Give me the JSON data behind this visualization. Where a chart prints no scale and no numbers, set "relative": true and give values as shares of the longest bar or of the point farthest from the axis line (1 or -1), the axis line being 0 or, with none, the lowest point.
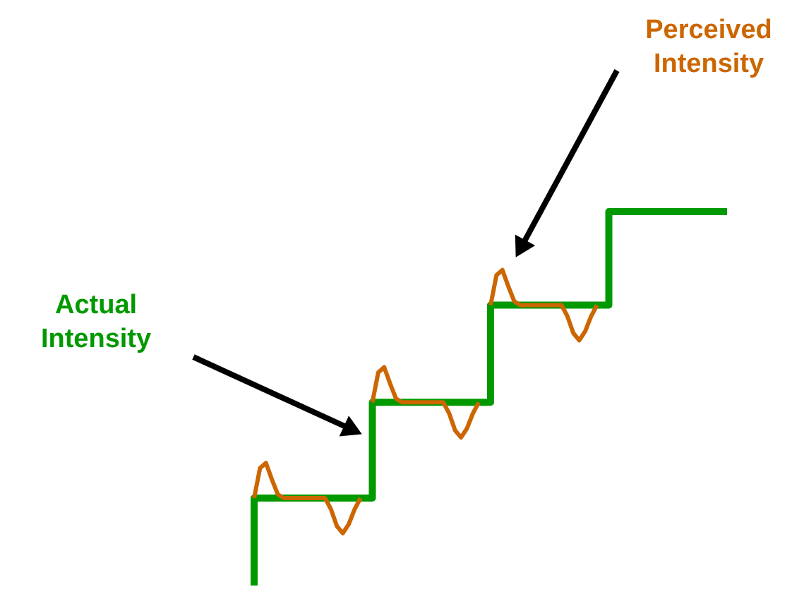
{
  "chart_data": {
    "type": "line",
    "relative": true,
    "line_style": "solid",
    "categories": [
      null,
      null,
      null,
      null,
      null,
      null,
      null,
      null,
      null,
      null,
      null,
      null,
      null,
      null,
      null,
      null,
      null,
      null,
      null,
      null,
      null,
      null,
      null,
      null,
      null,
      null,
      null,
      null,
      null,
      null,
      null,
      null,
      null,
      null,
      null,
      null,
      null,
      null,
      null,
      null,
      null,
      null,
      null,
      null,
      null,
      null,
      null,
      null,
      null,
      null,
      null,
      null,
      null,
      null,
      null,
      null,
      null,
      null,
      null,
      null,
      null,
      null,
      null,
      null,
      null,
      null,
      null,
      null,
      null,
      null,
      null,
      null,
      null,
      null,
      null,
      null,
      null,
      null,
      null,
      null,
      null
    ],
    "series": [
      {
        "name": "Actual Intensity",
        "color": "#009900",
        "type": "step",
        "values": [
          0,
          0.234,
          0.234,
          0.234,
          0.234,
          0.234,
          0.234,
          0.234,
          0.234,
          0.234,
          0.234,
          0.234,
          0.234,
          0.234,
          0.234,
          0.234,
          0.234,
          0.234,
          0.234,
          0.234,
          0.234,
          0.49,
          0.49,
          0.49,
          0.49,
          0.49,
          0.49,
          0.49,
          0.49,
          0.49,
          0.49,
          0.49,
          0.49,
          0.49,
          0.49,
          0.49,
          0.49,
          0.49,
          0.49,
          0.49,
          0.49,
          0.75,
          0.75,
          0.75,
          0.75,
          0.75,
          0.75,
          0.75,
          0.75,
          0.75,
          0.75,
          0.75,
          0.75,
          0.75,
          0.75,
          0.75,
          0.75,
          0.75,
          0.75,
          0.75,
          0.75,
          1,
          1,
          1,
          1,
          1,
          1,
          1,
          1,
          1,
          1,
          1,
          1,
          1,
          1,
          1,
          1,
          1,
          1,
          1,
          1
        ]
      },
      {
        "name": "Perceived Intensity",
        "color": "#cc6600",
        "values": [
          0.234,
          0.314,
          0.328,
          0.284,
          0.244,
          0.234,
          0.234,
          0.234,
          0.234,
          0.234,
          0.234,
          0.234,
          0.234,
          0.204,
          0.159,
          0.14,
          0.164,
          0.204,
          0.234,
          null,
          0.49,
          0.57,
          0.584,
          0.54,
          0.5,
          0.49,
          0.49,
          0.49,
          0.49,
          0.49,
          0.49,
          0.49,
          0.49,
          0.46,
          0.415,
          0.396,
          0.42,
          0.46,
          0.49,
          null,
          0.75,
          0.83,
          0.844,
          0.8,
          0.76,
          0.75,
          0.75,
          0.75,
          0.75,
          0.75,
          0.75,
          0.75,
          0.75,
          0.72,
          0.675,
          0.656,
          0.68,
          0.72,
          0.75,
          null,
          null,
          null,
          null,
          null,
          null,
          null,
          null,
          null,
          null,
          null,
          null,
          null,
          null,
          null,
          null,
          null,
          null,
          null,
          null,
          null,
          null
        ]
      }
    ]
  }
}
